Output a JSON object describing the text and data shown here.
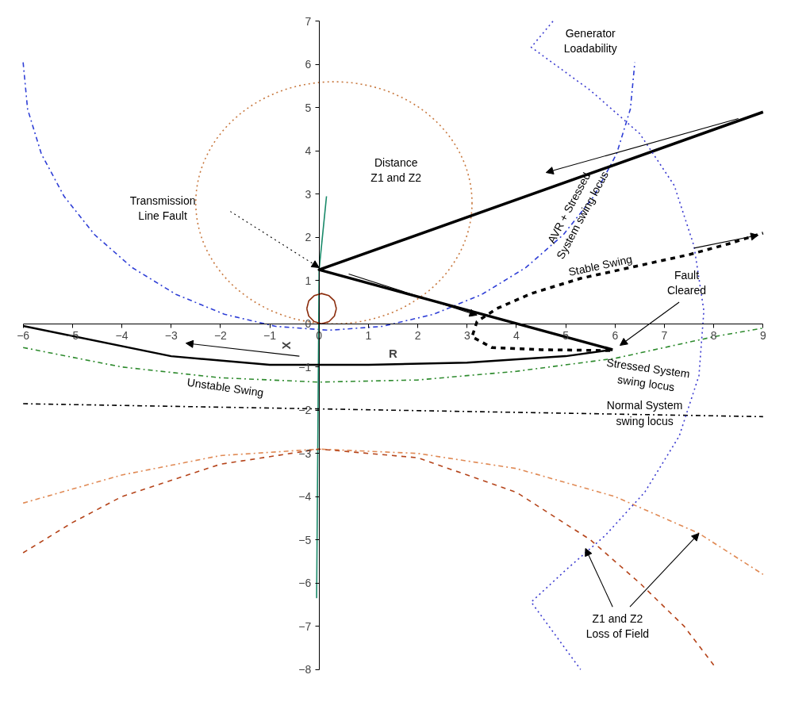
{
  "chart_data": {
    "type": "line",
    "xlabel": "R",
    "ylabel": "X",
    "xlim": [
      -6,
      9
    ],
    "ylim": [
      -8,
      7
    ],
    "xticks": [
      -6,
      -5,
      -4,
      -3,
      -2,
      -1,
      0,
      1,
      2,
      3,
      4,
      5,
      6,
      7,
      8,
      9
    ],
    "yticks": [
      -8,
      -7,
      -6,
      -5,
      -4,
      -3,
      -2,
      -1,
      0,
      1,
      2,
      3,
      4,
      5,
      6,
      7
    ],
    "grid": false,
    "marker": "none",
    "series": [
      {
        "color": "#2f3fd6",
        "line_style": "dashdot",
        "x": [
          -6.0,
          -5.91,
          -5.63,
          -5.17,
          -4.55,
          -3.79,
          -2.9,
          -1.92,
          -0.88,
          0.2,
          1.28,
          2.32,
          3.3,
          4.19,
          4.95,
          5.57,
          6.03,
          6.31,
          6.4
        ],
        "values": [
          6.05,
          4.97,
          3.93,
          2.95,
          2.06,
          1.3,
          0.68,
          0.22,
          -0.06,
          -0.15,
          -0.06,
          0.22,
          0.68,
          1.3,
          2.06,
          2.95,
          3.93,
          4.97,
          6.05
        ]
      },
      {
        "color": "#1a8a6a",
        "line_style": "solid",
        "x": [
          0.15,
          0.0,
          -0.05
        ],
        "values": [
          2.95,
          1.25,
          -6.35
        ]
      },
      {
        "color": "#000000",
        "line_style": "solid",
        "x": [
          9,
          0,
          5.95
        ],
        "values": [
          4.9,
          1.25,
          -0.6
        ]
      },
      {
        "color": "#000000",
        "line_style": "dashed",
        "x": [
          5.9,
          4.5,
          3.5,
          3.1,
          3.2,
          3.6,
          4.3,
          5.3,
          6.5,
          7.5,
          8.3,
          9.0
        ],
        "values": [
          -0.62,
          -0.6,
          -0.55,
          -0.3,
          0.05,
          0.35,
          0.7,
          1.05,
          1.35,
          1.6,
          1.85,
          2.1
        ]
      },
      {
        "color": "#000000",
        "line_style": "solid",
        "x": [
          -6,
          -3,
          -1,
          1,
          3,
          5,
          5.95
        ],
        "values": [
          -0.05,
          -0.75,
          -0.95,
          -0.95,
          -0.9,
          -0.75,
          -0.6
        ]
      },
      {
        "color": "#2e8b2e",
        "line_style": "dashdot",
        "x": [
          -6,
          -4,
          -2,
          0,
          2,
          4,
          6,
          8,
          9
        ],
        "values": [
          -0.55,
          -1.0,
          -1.25,
          -1.35,
          -1.3,
          -1.1,
          -0.8,
          -0.3,
          -0.1
        ]
      },
      {
        "color": "#000000",
        "line_style": "dashdot",
        "x": [
          -6,
          0,
          9
        ],
        "values": [
          -1.85,
          -1.97,
          -2.15
        ]
      },
      {
        "color": "#e08a55",
        "line_style": "dashdot",
        "x": [
          -6,
          -4,
          -2,
          0,
          2,
          4,
          6,
          7.7,
          9
        ],
        "values": [
          -4.15,
          -3.5,
          -3.05,
          -2.9,
          -3.0,
          -3.35,
          -4.0,
          -4.85,
          -5.8
        ]
      },
      {
        "color": "#b5441a",
        "line_style": "dashed",
        "x": [
          -6,
          -5,
          -4,
          -2,
          0,
          2,
          4,
          5.5,
          6.5,
          7.4,
          8.0
        ],
        "values": [
          -5.3,
          -4.6,
          -4.0,
          -3.25,
          -2.9,
          -3.1,
          -3.9,
          -5.0,
          -6.0,
          -7.0,
          -7.9
        ]
      },
      {
        "color": "#3b3bd0",
        "line_style": "dotted",
        "x": [
          4.74,
          4.3,
          5.5,
          6.5,
          7.2,
          7.6,
          7.8,
          7.7,
          7.3,
          6.6,
          5.8,
          5.0,
          4.3,
          5.3
        ],
        "values": [
          7.0,
          6.4,
          5.4,
          4.4,
          3.2,
          1.8,
          0.3,
          -1.2,
          -2.6,
          -3.9,
          -4.9,
          -5.7,
          -6.44,
          -8.0
        ]
      },
      {
        "color": "#8b2c0c",
        "line_style": "solid",
        "x": [
          -0.25,
          -0.21,
          -0.1,
          0.05,
          0.2,
          0.31,
          0.35
        ],
        "values": [
          0.35,
          0.53,
          0.65,
          0.7,
          0.65,
          0.53,
          0.35
        ]
      },
      {
        "color": "#8b2c0c",
        "line_style": "solid",
        "x": [
          -0.25,
          -0.21,
          -0.1,
          0.05,
          0.2,
          0.31,
          0.35
        ],
        "values": [
          0.35,
          0.18,
          0.05,
          0.0,
          0.05,
          0.18,
          0.35
        ]
      }
    ],
    "annotations": [
      "Generator\nLoadability",
      "Distance\nZ1 and Z2",
      "Transmission\nLine Fault",
      "AVR + Stressed\nSystem swing locus",
      "Stable Swing",
      "Fault\nCleared",
      "Stressed System\nswing locus",
      "Unstable Swing",
      "Normal System\nswing locus",
      {
        "text": "Z1 and Z2\nLoss of Field",
        "x": 7.7,
        "y": -4.85
      }
    ]
  }
}
